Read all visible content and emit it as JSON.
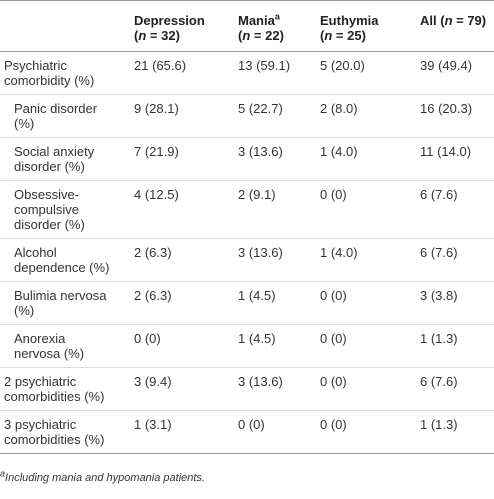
{
  "table": {
    "header": [
      {
        "lines": [
          [
            {
              "text": ""
            }
          ]
        ]
      },
      {
        "lines": [
          [
            {
              "text": "Depression"
            }
          ],
          [
            {
              "text": "("
            },
            {
              "text": "n",
              "italic": true
            },
            {
              "text": " = 32)"
            }
          ]
        ]
      },
      {
        "lines": [
          [
            {
              "text": "Mania"
            },
            {
              "text": "a",
              "sup": true
            }
          ],
          [
            {
              "text": "("
            },
            {
              "text": "n",
              "italic": true
            },
            {
              "text": " = 22)"
            }
          ]
        ]
      },
      {
        "lines": [
          [
            {
              "text": "Euthymia"
            }
          ],
          [
            {
              "text": "("
            },
            {
              "text": "n",
              "italic": true
            },
            {
              "text": " = 25)"
            }
          ]
        ]
      },
      {
        "lines": [
          [
            {
              "text": "All ("
            },
            {
              "text": "n",
              "italic": true
            },
            {
              "text": " = 79)"
            }
          ]
        ]
      }
    ],
    "rows": [
      {
        "label": [
          "Psychiatric",
          "comorbidity (%)"
        ],
        "indent": false,
        "cells": [
          "21 (65.6)",
          "13 (59.1)",
          "5 (20.0)",
          "39 (49.4)"
        ]
      },
      {
        "label": [
          "Panic disorder",
          "(%)"
        ],
        "indent": true,
        "cells": [
          "9 (28.1)",
          "5 (22.7)",
          "2 (8.0)",
          "16 (20.3)"
        ]
      },
      {
        "label": [
          "Social anxiety",
          "disorder (%)"
        ],
        "indent": true,
        "cells": [
          "7 (21.9)",
          "3 (13.6)",
          "1 (4.0)",
          "11 (14.0)"
        ]
      },
      {
        "label": [
          "Obsessive-",
          "compulsive",
          "disorder (%)"
        ],
        "indent": true,
        "cells": [
          "4 (12.5)",
          "2 (9.1)",
          "0 (0)",
          "6 (7.6)"
        ]
      },
      {
        "label": [
          "Alcohol",
          "dependence (%)"
        ],
        "indent": true,
        "cells": [
          "2 (6.3)",
          "3 (13.6)",
          "1 (4.0)",
          "6 (7.6)"
        ]
      },
      {
        "label": [
          "Bulimia nervosa",
          "(%)"
        ],
        "indent": true,
        "cells": [
          "2 (6.3)",
          "1 (4.5)",
          "0 (0)",
          "3 (3.8)"
        ]
      },
      {
        "label": [
          "Anorexia",
          "nervosa (%)"
        ],
        "indent": true,
        "cells": [
          "0 (0)",
          "1 (4.5)",
          "0 (0)",
          "1 (1.3)"
        ]
      },
      {
        "label": [
          "2 psychiatric",
          "comorbidities (%)"
        ],
        "indent": false,
        "cells": [
          "3 (9.4)",
          "3 (13.6)",
          "0 (0)",
          "6 (7.6)"
        ]
      },
      {
        "label": [
          "3 psychiatric",
          "comorbidities (%)"
        ],
        "indent": false,
        "cells": [
          "1 (3.1)",
          "0 (0)",
          "0 (0)",
          "1 (1.3)"
        ]
      }
    ],
    "footnote": [
      {
        "text": "a",
        "sup": true
      },
      {
        "text": "Including mania and hypomania patients."
      }
    ]
  }
}
